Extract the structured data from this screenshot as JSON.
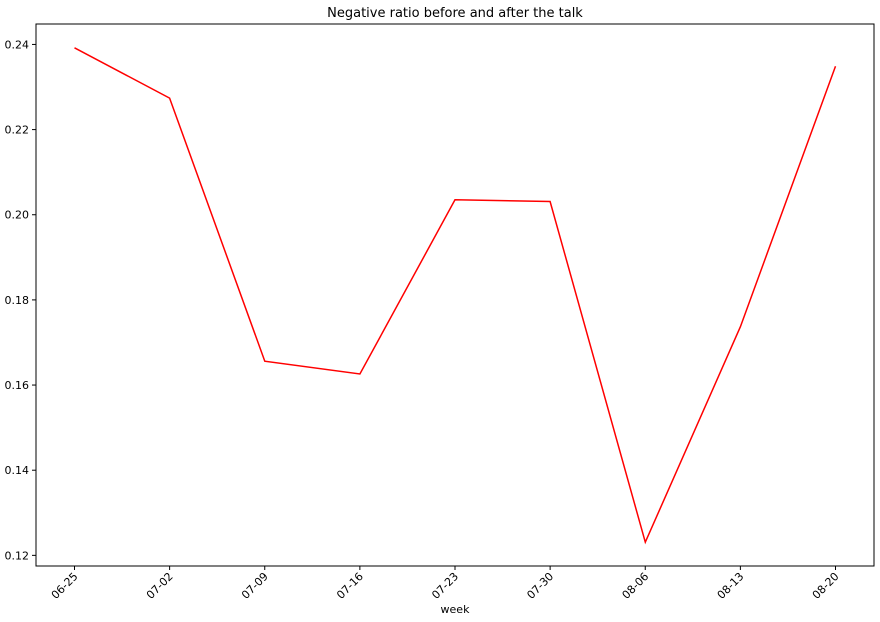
{
  "chart_data": {
    "type": "line",
    "title": "Negative ratio before and after the talk",
    "xlabel": "week",
    "ylabel": "",
    "categories": [
      "06-25",
      "07-02",
      "07-09",
      "07-16",
      "07-23",
      "07-30",
      "08-06",
      "08-13",
      "08-20"
    ],
    "series": [
      {
        "values": [
          0.2392,
          0.2274,
          0.1656,
          0.1626,
          0.2035,
          0.2031,
          0.1231,
          0.1737,
          0.2349
        ]
      }
    ],
    "y_ticks": [
      "0.12",
      "0.14",
      "0.16",
      "0.18",
      "0.20",
      "0.22",
      "0.24"
    ],
    "ylim": [
      0.1175,
      0.2448
    ],
    "grid": false,
    "legend": "none",
    "line_color": "#ff0000"
  }
}
